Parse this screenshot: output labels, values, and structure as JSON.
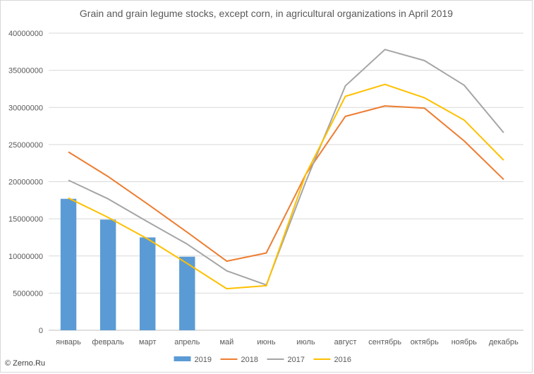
{
  "chart_data": {
    "type": "bar+line",
    "title": "Grain and grain legume stocks, except corn, in agricultural organizations in April 2019",
    "categories": [
      "январь",
      "февраль",
      "март",
      "апрель",
      "май",
      "июнь",
      "июль",
      "август",
      "сентябрь",
      "октябрь",
      "ноябрь",
      "декабрь"
    ],
    "ylim": [
      0,
      40000000
    ],
    "yticks": [
      0,
      5000000,
      10000000,
      15000000,
      20000000,
      25000000,
      30000000,
      35000000,
      40000000
    ],
    "grid": true,
    "legend_position": "bottom",
    "series": [
      {
        "name": "2019",
        "kind": "bar",
        "color": "#5b9bd5",
        "values": [
          17700000,
          14900000,
          12500000,
          9900000,
          null,
          null,
          null,
          null,
          null,
          null,
          null,
          null
        ]
      },
      {
        "name": "2018",
        "kind": "line",
        "color": "#ed7d31",
        "values": [
          24000000,
          20700000,
          17000000,
          13200000,
          9300000,
          10400000,
          21000000,
          28800000,
          30200000,
          29900000,
          25500000,
          20300000
        ]
      },
      {
        "name": "2017",
        "kind": "line",
        "color": "#a5a5a5",
        "values": [
          20200000,
          17700000,
          14600000,
          11600000,
          8000000,
          6100000,
          20000000,
          32900000,
          37800000,
          36300000,
          33000000,
          26600000
        ]
      },
      {
        "name": "2016",
        "kind": "line",
        "color": "#ffc000",
        "values": [
          17800000,
          15200000,
          12300000,
          9000000,
          5600000,
          6000000,
          21000000,
          31500000,
          33100000,
          31300000,
          28300000,
          22900000
        ]
      }
    ]
  },
  "watermark": "© Zerno.Ru"
}
